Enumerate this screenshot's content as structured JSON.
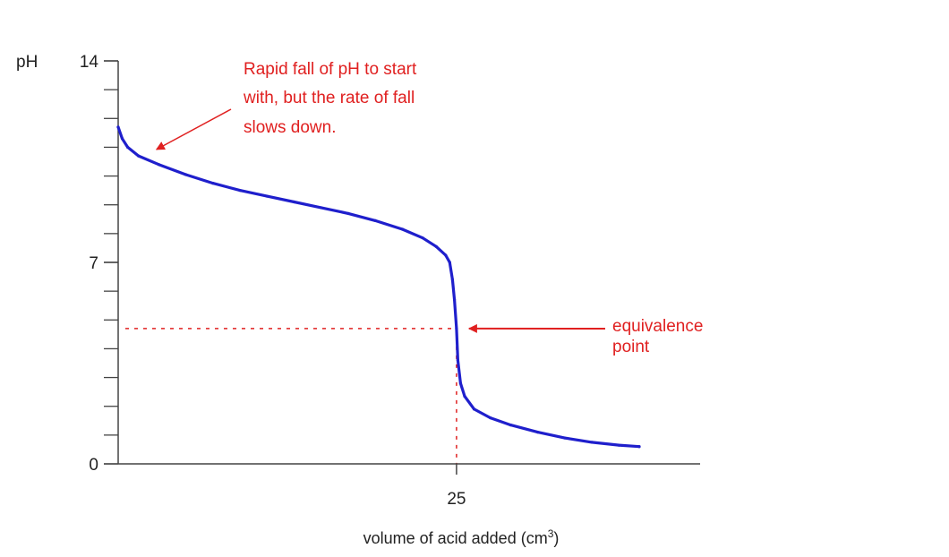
{
  "chart_data": {
    "type": "line",
    "ylabel": "pH",
    "xlabel": "volume of acid added (cm",
    "xlabel_sup": "3",
    "xlabel_close": ")",
    "ylim": [
      0,
      14
    ],
    "xlim": [
      0,
      43
    ],
    "y_ticks_major": [
      {
        "value": 0,
        "label": "0"
      },
      {
        "value": 7,
        "label": "7"
      },
      {
        "value": 14,
        "label": "14"
      }
    ],
    "y_ticks_minor_step": 1,
    "x_ticks": [
      {
        "value": 25,
        "label": "25"
      }
    ],
    "grid": false,
    "series": [
      {
        "color": "#1f1fcc",
        "points": [
          [
            0.0,
            11.7
          ],
          [
            0.3,
            11.3
          ],
          [
            0.7,
            11.0
          ],
          [
            1.5,
            10.7
          ],
          [
            3,
            10.4
          ],
          [
            5,
            10.05
          ],
          [
            7,
            9.75
          ],
          [
            9,
            9.5
          ],
          [
            11,
            9.3
          ],
          [
            13,
            9.1
          ],
          [
            15,
            8.9
          ],
          [
            17,
            8.7
          ],
          [
            19,
            8.45
          ],
          [
            21,
            8.15
          ],
          [
            22.5,
            7.85
          ],
          [
            23.5,
            7.55
          ],
          [
            24.2,
            7.25
          ],
          [
            24.5,
            7.0
          ],
          [
            24.7,
            6.4
          ],
          [
            24.85,
            5.7
          ],
          [
            25.0,
            4.7
          ],
          [
            25.1,
            3.6
          ],
          [
            25.3,
            2.8
          ],
          [
            25.6,
            2.35
          ],
          [
            26.3,
            1.9
          ],
          [
            27.5,
            1.6
          ],
          [
            29,
            1.35
          ],
          [
            31,
            1.1
          ],
          [
            33,
            0.9
          ],
          [
            35,
            0.75
          ],
          [
            37,
            0.65
          ],
          [
            38.5,
            0.6
          ]
        ]
      }
    ],
    "reference_lines": {
      "equivalence_x": 25,
      "equivalence_y": 4.7,
      "color": "#e02020"
    },
    "annotations": [
      {
        "lines": [
          "Rapid fall of pH to start",
          "with, but the rate of fall",
          "slows down."
        ],
        "color": "#e02020",
        "arrow_to": [
          2.3,
          10.8
        ]
      },
      {
        "lines": [
          "equivalence",
          "point"
        ],
        "color": "#e02020",
        "arrow_to": [
          25.0,
          4.7
        ]
      }
    ]
  }
}
